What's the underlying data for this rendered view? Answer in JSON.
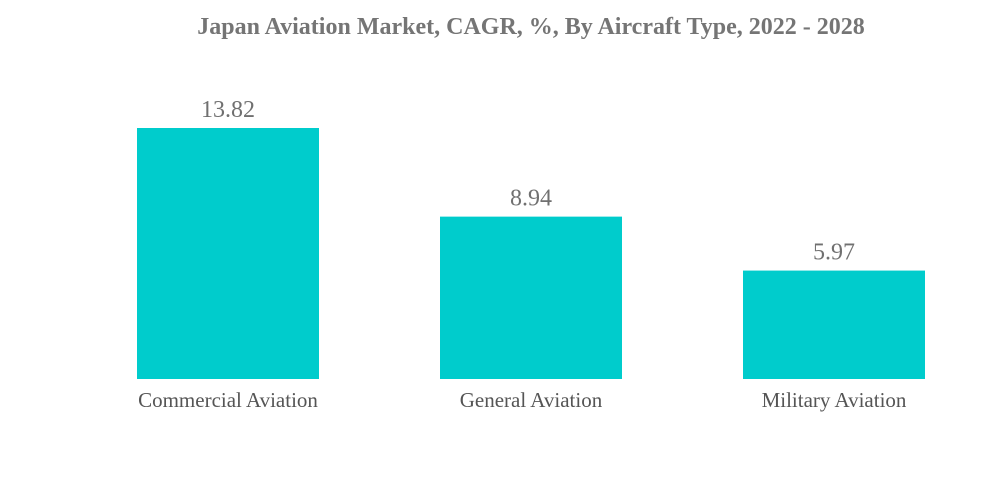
{
  "chart_data": {
    "type": "bar",
    "title": "Japan Aviation Market, CAGR, %, By Aircraft Type, 2022 - 2028",
    "categories": [
      "Commercial Aviation",
      "General Aviation",
      "Military Aviation"
    ],
    "values": [
      13.82,
      8.94,
      5.97
    ],
    "value_labels": [
      "13.82",
      "8.94",
      "5.97"
    ],
    "xlabel": "",
    "ylabel": "",
    "grid": false,
    "colors": {
      "bar": "#00cccc",
      "title": "#757575",
      "value_label": "#707070",
      "category_label": "#555555"
    }
  }
}
